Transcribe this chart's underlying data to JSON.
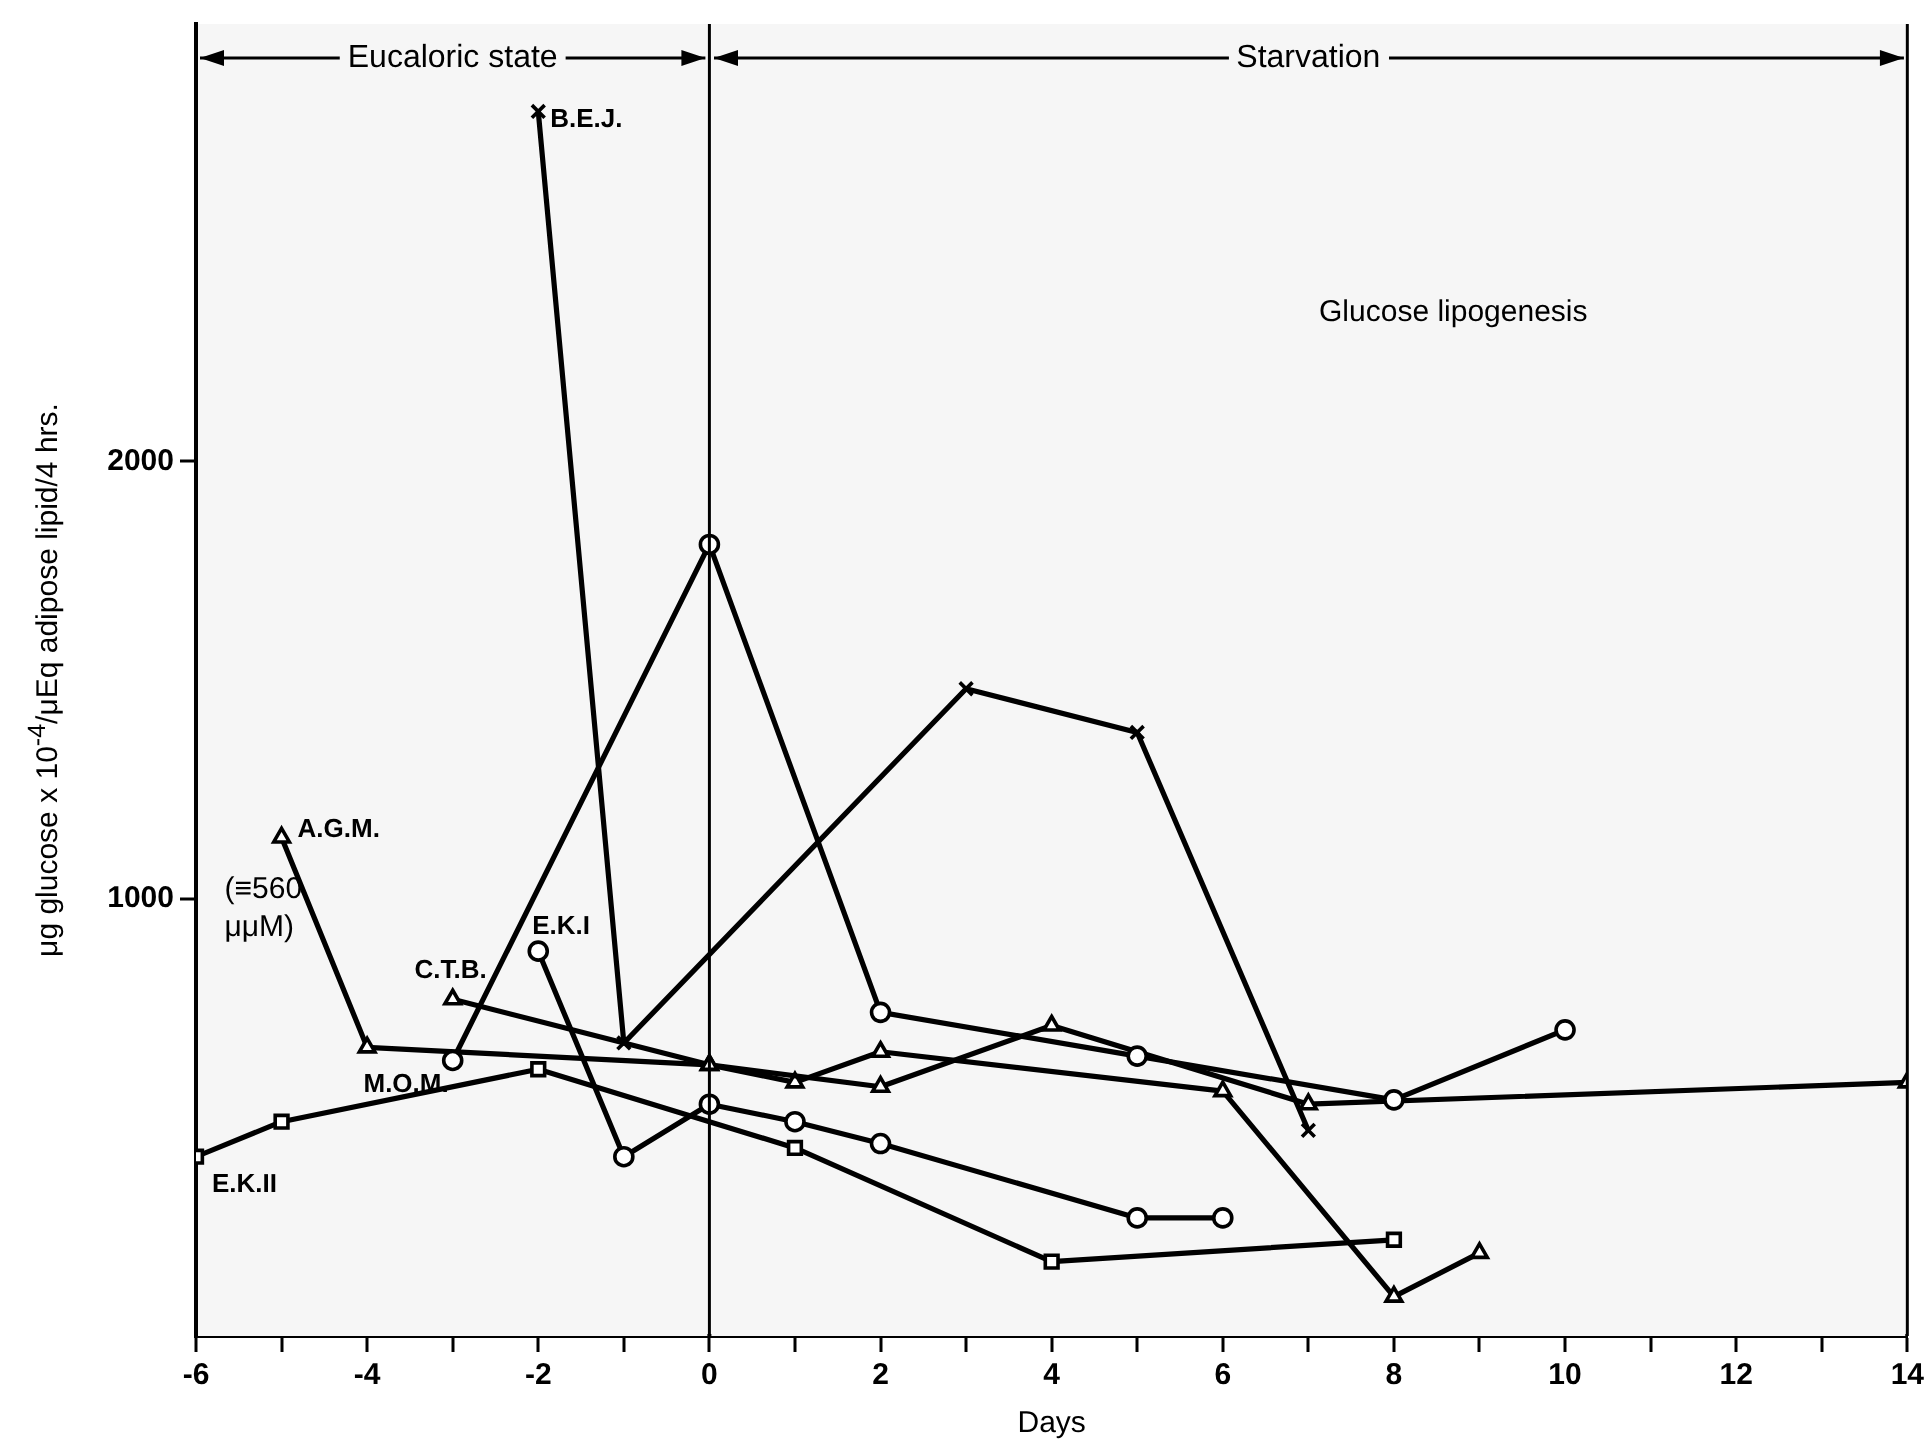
{
  "chart_data": {
    "type": "line",
    "xlabel": "Days",
    "ylabel": "μg glucose x 10$^{-4}$/μEq adipose lipid/4 hrs.",
    "xlim": [
      -6,
      14
    ],
    "xticks": [
      -6,
      {
        "value": -5,
        "label": null
      },
      -4,
      {
        "value": -3,
        "label": null
      },
      -2,
      {
        "value": -1,
        "label": null
      },
      0,
      {
        "value": 1,
        "label": null
      },
      2,
      {
        "value": 3,
        "label": null
      },
      4,
      {
        "value": 5,
        "label": null
      },
      6,
      {
        "value": 7,
        "label": null
      },
      8,
      {
        "value": 9,
        "label": null
      },
      10,
      {
        "value": 11,
        "label": null
      },
      12,
      {
        "value": 13,
        "label": null
      },
      14
    ],
    "ylim": [
      0,
      3000
    ],
    "yticks": [
      1000,
      2000
    ],
    "grid": false,
    "legend": false,
    "line_style": "solid",
    "series": [
      {
        "name": "B.E.J.",
        "color": "#000000",
        "marker": "cross",
        "x": [
          -2,
          -1,
          3,
          5,
          7
        ],
        "values": [
          2800,
          670,
          1480,
          1380,
          470
        ]
      },
      {
        "name": "M.O.M.",
        "color": "#000000",
        "marker": "circle",
        "x": [
          -3,
          0,
          2,
          5,
          8,
          10
        ],
        "values": [
          630,
          1810,
          740,
          640,
          540,
          700
        ]
      },
      {
        "name": "C.T.B.",
        "color": "#000000",
        "marker": "triangle",
        "x": [
          -3,
          0,
          2,
          4,
          7,
          14
        ],
        "values": [
          770,
          620,
          570,
          710,
          530,
          580
        ]
      },
      {
        "name": "A.G.M.",
        "color": "#000000",
        "marker": "triangle",
        "x": [
          -5,
          -4,
          0,
          1,
          2,
          6,
          8,
          9
        ],
        "values": [
          1140,
          660,
          620,
          580,
          650,
          560,
          90,
          190
        ]
      },
      {
        "name": "E.K.I",
        "color": "#000000",
        "marker": "circle",
        "x": [
          -2,
          -1,
          0,
          1,
          2,
          5,
          6
        ],
        "values": [
          880,
          410,
          530,
          490,
          440,
          270,
          270
        ]
      },
      {
        "name": "E.K.II",
        "color": "#000000",
        "marker": "square",
        "x": [
          -6,
          -5,
          -2,
          1,
          4,
          8
        ],
        "values": [
          410,
          490,
          610,
          430,
          170,
          220
        ]
      }
    ],
    "ref_lines": [
      {
        "axis": "x",
        "value": 0
      }
    ],
    "bands": [
      {
        "axis": "x",
        "from": -6,
        "to": 0,
        "label": "Eucaloric state",
        "color": "#f6f6f6"
      },
      {
        "axis": "x",
        "from": 0,
        "to": 14,
        "label": "Starvation",
        "color": "#f6f6f6"
      }
    ],
    "annotations": [
      "Glucose lipogenesis",
      "(≡560 μμM)"
    ]
  }
}
